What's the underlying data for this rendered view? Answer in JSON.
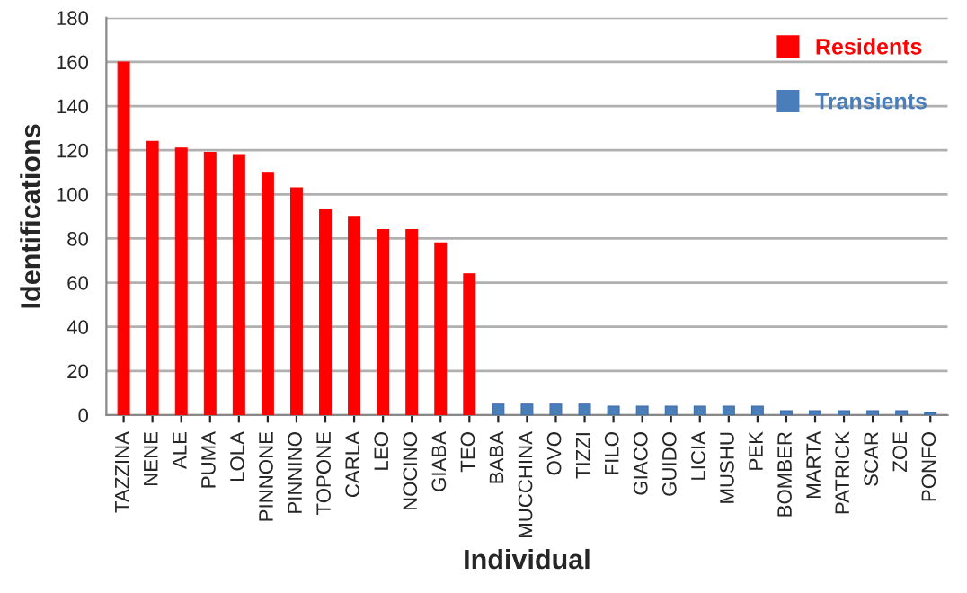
{
  "chart_data": {
    "type": "bar",
    "stacked": true,
    "xlabel": "Individual",
    "ylabel": "Identifications",
    "categories": [
      "TAZZINA",
      "NENE",
      "ALE",
      "PUMA",
      "LOLA",
      "PINNONE",
      "PINNINO",
      "TOPONE",
      "CARLA",
      "LEO",
      "NOCINO",
      "GIABA",
      "TEO",
      "BABA",
      "MUCCHINA",
      "OVO",
      "TIZZI",
      "FILO",
      "GIACO",
      "GUIDO",
      "LICIA",
      "MUSHU",
      "PEK",
      "BOMBER",
      "MARTA",
      "PATRICK",
      "SCAR",
      "ZOE",
      "PONFO"
    ],
    "series": [
      {
        "name": "Residents",
        "color": "#ff0000",
        "values": [
          160,
          124,
          121,
          119,
          118,
          110,
          103,
          93,
          90,
          84,
          84,
          78,
          64,
          null,
          null,
          null,
          null,
          null,
          null,
          null,
          null,
          null,
          null,
          null,
          null,
          null,
          null,
          null,
          null
        ]
      },
      {
        "name": "Transients",
        "color": "#4a7ebb",
        "values": [
          null,
          null,
          null,
          null,
          null,
          null,
          null,
          null,
          null,
          null,
          null,
          null,
          null,
          5,
          5,
          5,
          5,
          4,
          4,
          4,
          4,
          4,
          4,
          2,
          2,
          2,
          2,
          2,
          1
        ]
      }
    ],
    "ylim": [
      0,
      180
    ],
    "yticks": [
      0,
      20,
      40,
      60,
      80,
      100,
      120,
      140,
      160,
      180
    ],
    "grid": "y",
    "legend": "top right"
  }
}
